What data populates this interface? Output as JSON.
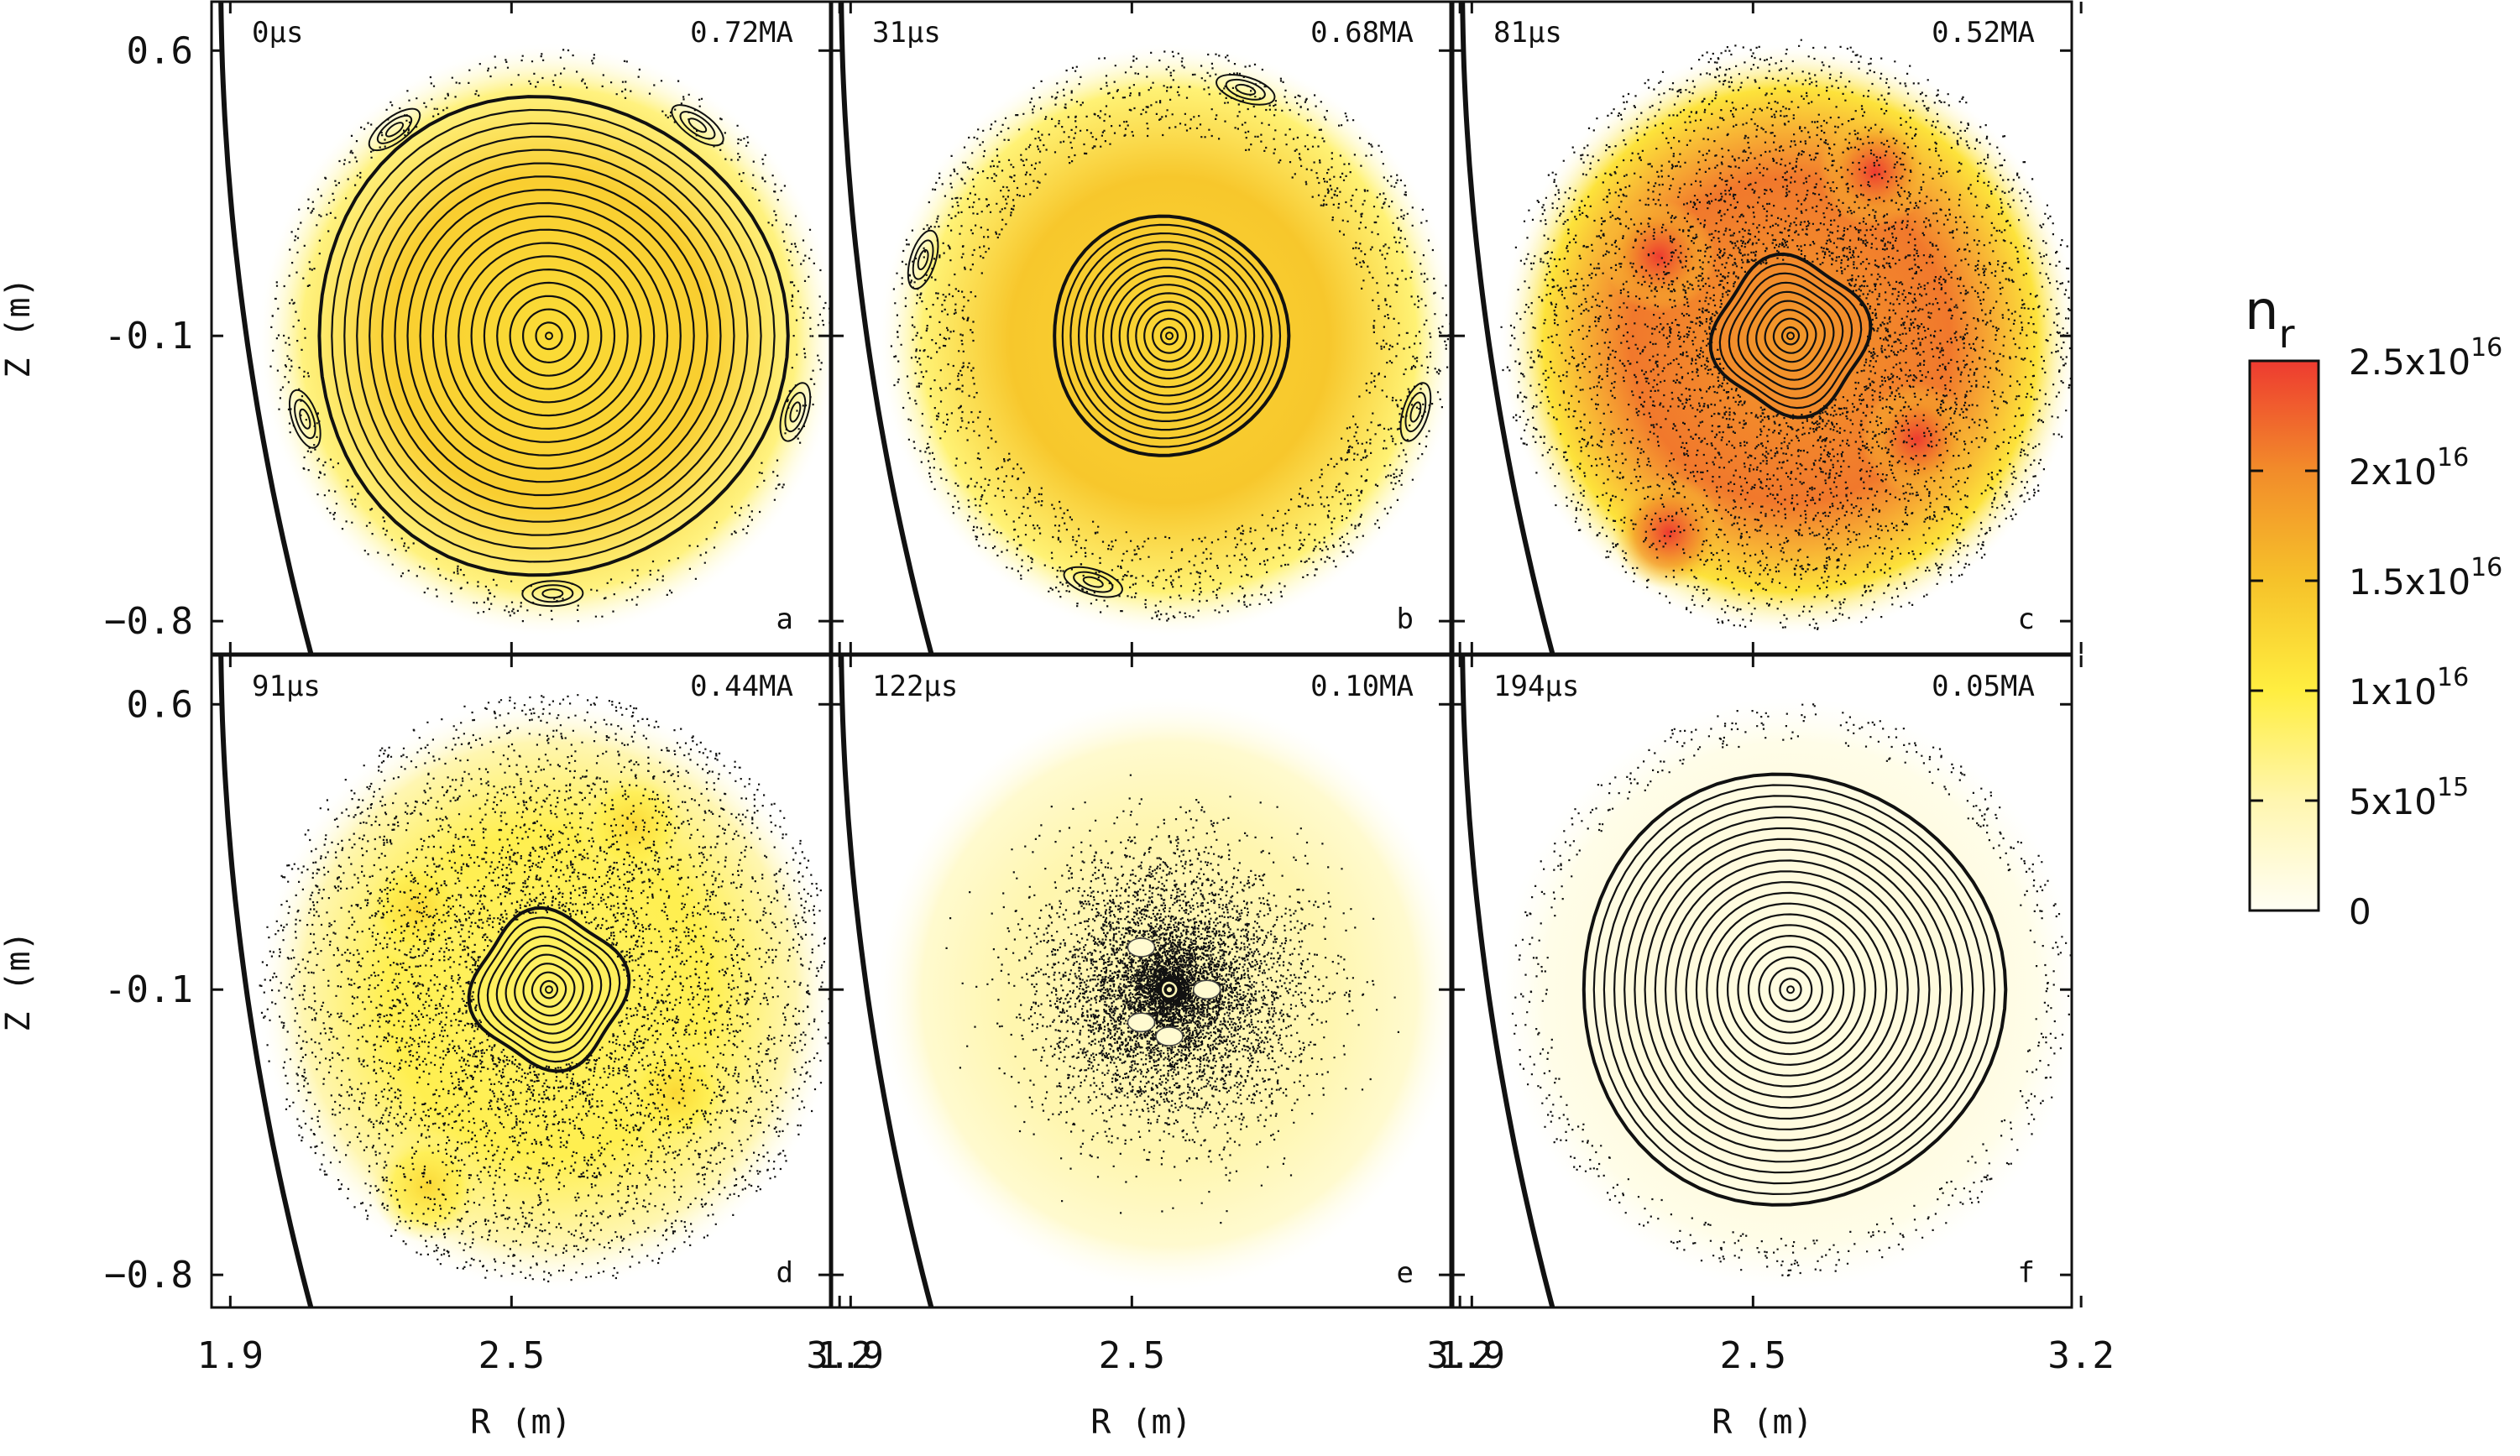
{
  "figure": {
    "colormap_stops": [
      "#fffef4",
      "#fff6b0",
      "#ffee40",
      "#f6c22a",
      "#f28c2a",
      "#ee3b30"
    ]
  },
  "chart_data": {
    "type": "heatmap",
    "description_kind": "poincare-plot-grid",
    "xlabel": "R (m)",
    "ylabel": "Z (m)",
    "xlim": [
      1.86,
      3.18
    ],
    "ylim": [
      -0.88,
      0.72
    ],
    "x_ticks": [
      {
        "value": 1.9,
        "label": "1.9"
      },
      {
        "value": 2.5,
        "label": "2.5"
      },
      {
        "value": 3.2,
        "label": "3.2"
      }
    ],
    "y_ticks": [
      {
        "value": 0.6,
        "label": "0.6"
      },
      {
        "value": -0.1,
        "label": "-0.1"
      },
      {
        "value": -0.8,
        "label": "−0.8"
      }
    ],
    "magnetic_axis": {
      "R": 2.58,
      "Z": -0.1
    },
    "panels": [
      {
        "letter": "a",
        "time": "0μs",
        "current": "0.72MA",
        "peak_nr": 1.6e+16,
        "core_radius": 0.5,
        "ring_count": 18,
        "stochastic": "low",
        "islands": "m=4/5 chains"
      },
      {
        "letter": "b",
        "time": "31μs",
        "current": "0.68MA",
        "peak_nr": 1.7e+16,
        "core_radius": 0.25,
        "ring_count": 14,
        "stochastic": "edge",
        "islands": "x-points around core"
      },
      {
        "letter": "c",
        "time": "81μs",
        "current": "0.52MA",
        "peak_nr": 2.5e+16,
        "core_radius": 0.16,
        "ring_count": 9,
        "stochastic": "high",
        "islands": "4 dense lobes"
      },
      {
        "letter": "d",
        "time": "91μs",
        "current": "0.44MA",
        "peak_nr": 1.1e+16,
        "core_radius": 0.16,
        "ring_count": 9,
        "stochastic": "high",
        "islands": "none"
      },
      {
        "letter": "e",
        "time": "122μs",
        "current": "0.10MA",
        "peak_nr": 6000000000000000.0,
        "core_radius": 0.02,
        "ring_count": 2,
        "stochastic": "full",
        "islands": "4 small"
      },
      {
        "letter": "f",
        "time": "194μs",
        "current": "0.05MA",
        "peak_nr": 2000000000000000.0,
        "core_radius": 0.45,
        "ring_count": 20,
        "stochastic": "low",
        "islands": "none"
      }
    ],
    "colorbar": {
      "title": "n",
      "title_subscript": "r",
      "min": 0,
      "max": 2.5e+16,
      "ticks": [
        {
          "value": 2.5e+16,
          "mantissa": "2.5x10",
          "exp": "16"
        },
        {
          "value": 2e+16,
          "mantissa": "2x10",
          "exp": "16"
        },
        {
          "value": 1.5e+16,
          "mantissa": "1.5x10",
          "exp": "16"
        },
        {
          "value": 1e+16,
          "mantissa": "1x10",
          "exp": "16"
        },
        {
          "value": 5000000000000000.0,
          "mantissa": "5x10",
          "exp": "15"
        },
        {
          "value": 0,
          "mantissa": "0",
          "exp": ""
        }
      ]
    }
  }
}
